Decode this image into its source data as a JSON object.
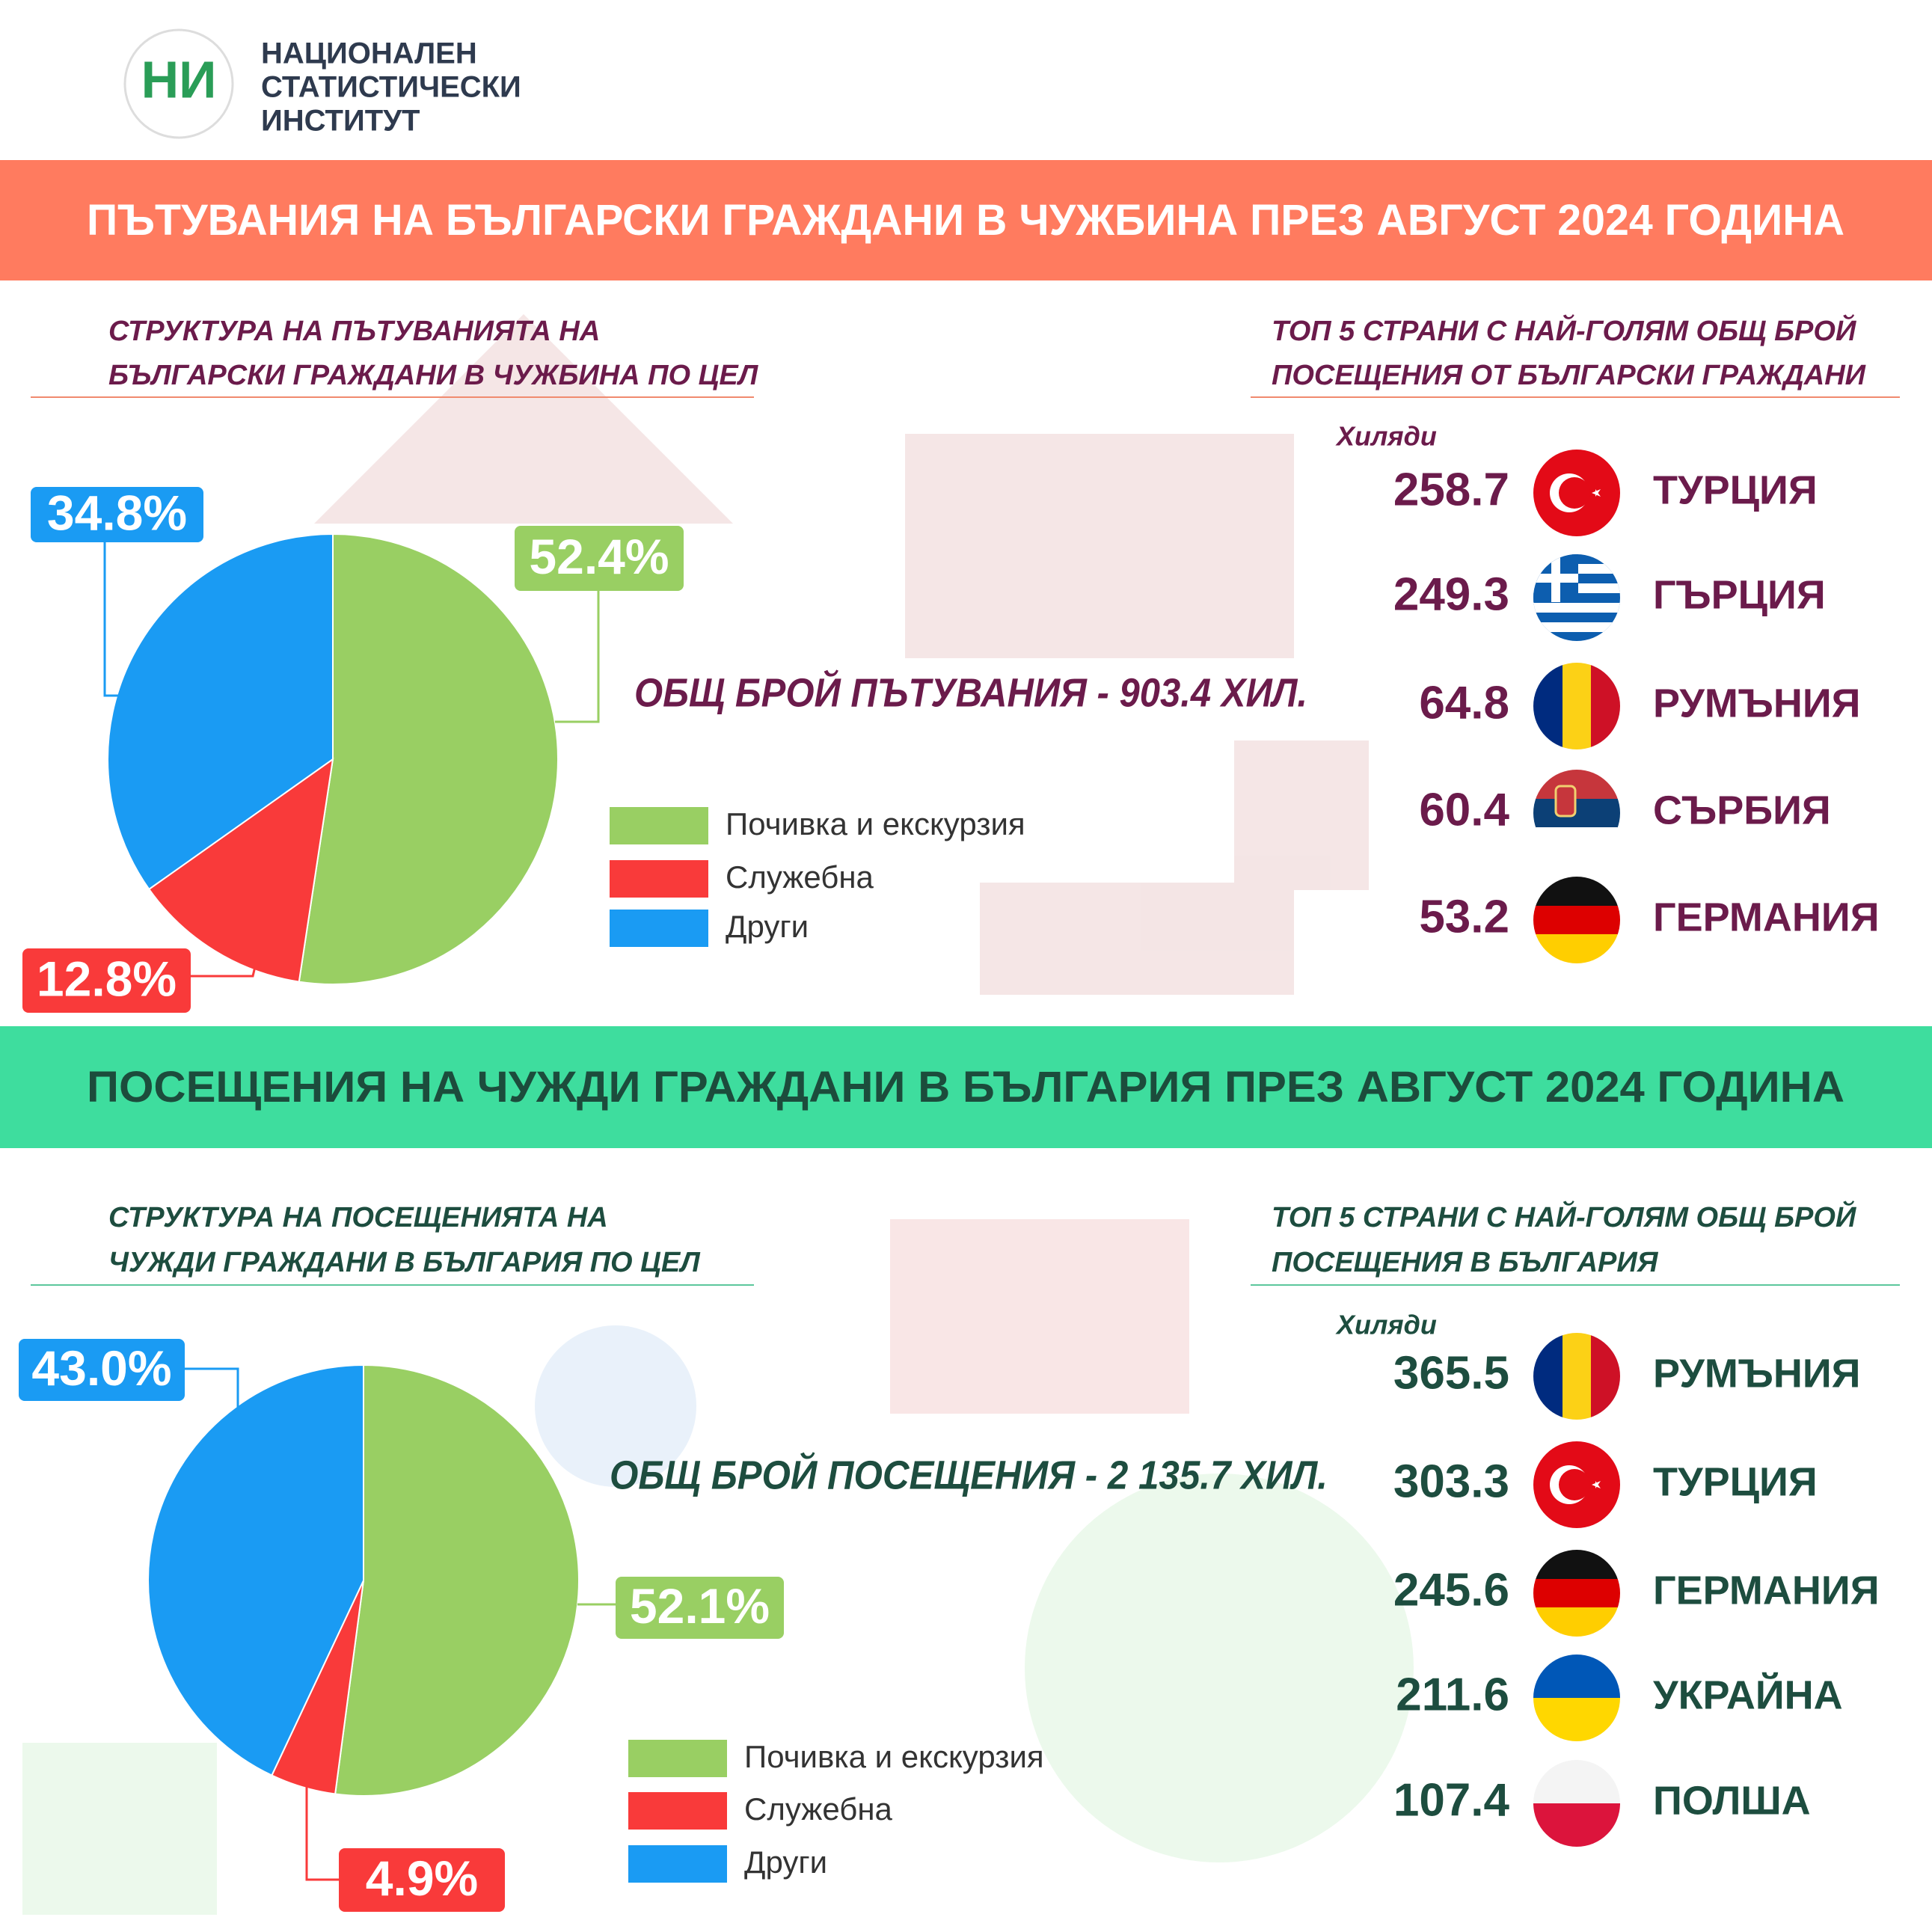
{
  "header": {
    "logo": "НИ",
    "org": [
      "НАЦИОНАЛЕН",
      "СТАТИСТИЧЕСКИ",
      "ИНСТИТУТ"
    ]
  },
  "sections": [
    {
      "title": "ПЪТУВАНИЯ НА БЪЛГАРСКИ ГРАЖДАНИ В ЧУЖБИНА ПРЕЗ АВГУСТ 2024 ГОДИНА",
      "structure_title": [
        "СТРУКТУРА НА ПЪТУВАНИЯТА НА",
        "БЪЛГАРСКИ ГРАЖДАНИ В ЧУЖБИНА ПО ЦЕЛ"
      ],
      "top_title": [
        "ТОП 5 СТРАНИ С НАЙ-ГОЛЯМ ОБЩ БРОЙ",
        "ПОСЕЩЕНИЯ ОТ БЪЛГАРСКИ ГРАЖДАНИ"
      ],
      "total": "ОБЩ БРОЙ ПЪТУВАНИЯ - 903.4 ХИЛ.",
      "units": "Хиляди",
      "top": [
        {
          "value": 258.7,
          "country": "ТУРЦИЯ"
        },
        {
          "value": 249.3,
          "country": "ГЪРЦИЯ"
        },
        {
          "value": 64.8,
          "country": "РУМЪНИЯ"
        },
        {
          "value": 60.4,
          "country": "СЪРБИЯ"
        },
        {
          "value": 53.2,
          "country": "ГЕРМАНИЯ"
        }
      ]
    },
    {
      "title": "ПОСЕЩЕНИЯ НА ЧУЖДИ ГРАЖДАНИ В БЪЛГАРИЯ ПРЕЗ АВГУСТ 2024 ГОДИНА",
      "structure_title": [
        "СТРУКТУРА НА ПОСЕЩЕНИЯТА НА",
        "ЧУЖДИ ГРАЖДАНИ В БЪЛГАРИЯ ПО ЦЕЛ"
      ],
      "top_title": [
        "ТОП 5 СТРАНИ С НАЙ-ГОЛЯМ ОБЩ БРОЙ",
        "ПОСЕЩЕНИЯ В БЪЛГАРИЯ"
      ],
      "total": "ОБЩ БРОЙ ПОСЕЩЕНИЯ - 2 135.7 ХИЛ.",
      "units": "Хиляди",
      "top": [
        {
          "value": 365.5,
          "country": "РУМЪНИЯ"
        },
        {
          "value": 303.3,
          "country": "ТУРЦИЯ"
        },
        {
          "value": 245.6,
          "country": "ГЕРМАНИЯ"
        },
        {
          "value": 211.6,
          "country": "УКРАЙНА"
        },
        {
          "value": 107.4,
          "country": "ПОЛША"
        }
      ]
    }
  ],
  "chart_data": [
    {
      "type": "pie",
      "categories": [
        "Почивка и екскурзия",
        "Служебна",
        "Други"
      ],
      "values": [
        52.4,
        12.8,
        34.8
      ],
      "value_labels": [
        "52.4%",
        "12.8%",
        "34.8%"
      ],
      "colors": [
        "#99cf63",
        "#f93a3a",
        "#1a9bf3"
      ]
    },
    {
      "type": "pie",
      "categories": [
        "Почивка и екскурзия",
        "Служебна",
        "Други"
      ],
      "values": [
        52.1,
        4.9,
        43.0
      ],
      "value_labels": [
        "52.1%",
        "4.9%",
        "43.0%"
      ],
      "colors": [
        "#99cf63",
        "#f93a3a",
        "#1a9bf3"
      ]
    }
  ]
}
